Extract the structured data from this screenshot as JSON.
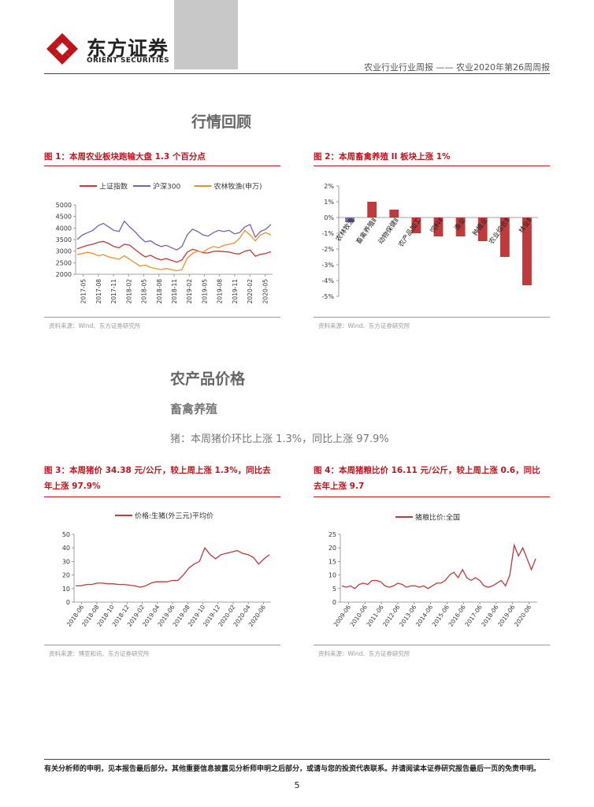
{
  "header": {
    "logo_cn": "东方证券",
    "logo_en": "ORIENT SECURITIES",
    "report_line": "农业行业行业周报 —— 农业2020年第26周周报"
  },
  "sections": {
    "market_review": "行情回顾",
    "ag_prices": "农产品价格",
    "livestock": "畜禽养殖",
    "pig_summary": "猪：本周猪价环比上涨 1.3%，同比上涨 97.9%"
  },
  "figures": {
    "fig1": {
      "title": "图 1：本周农业板块跑输大盘 1.3 个百分点",
      "source": "资料来源：Wind、东方证券研究所"
    },
    "fig2": {
      "title": "图 2：本周畜禽养殖 II 板块上涨 1%",
      "source": "资料来源：Wind、东方证券研究所"
    },
    "fig3": {
      "title_l1": "图 3：本周猪价 34.38 元/公斤，较上周上涨 1.3%，同比去",
      "title_l2": "年上涨 97.9%",
      "source": "资料来源：博亚和讯、东方证券研究所"
    },
    "fig4": {
      "title_l1": "图 4：本周猪粮比价 16.11 元/公斤，较上周上涨 0.6，同比",
      "title_l2": "去年上涨 9.7",
      "source": "资料来源：Wind、东方证券研究所"
    }
  },
  "chart_data": [
    {
      "type": "line",
      "series": [
        {
          "name": "上证指数",
          "color": "#c0393b",
          "values": [
            3100,
            3180,
            3250,
            3300,
            3380,
            3420,
            3330,
            3200,
            3150,
            3300,
            3260,
            3080,
            2900,
            2750,
            2820,
            2700,
            2620,
            2680,
            2600,
            2520,
            2620,
            2950,
            3080,
            3020,
            2930,
            2920,
            2990,
            3000,
            2980,
            2960,
            2900,
            2880,
            3000,
            3050,
            2780,
            2860,
            2900,
            2980
          ]
        },
        {
          "name": "沪深300",
          "color": "#7b5fb0",
          "values": [
            3500,
            3700,
            3800,
            3900,
            4100,
            4200,
            4050,
            3900,
            3850,
            4300,
            4050,
            3850,
            3600,
            3400,
            3450,
            3300,
            3200,
            3250,
            3150,
            3050,
            3200,
            3700,
            3950,
            3850,
            3700,
            3650,
            3800,
            3900,
            3850,
            3900,
            3750,
            3800,
            4050,
            4150,
            3600,
            3850,
            3950,
            4150
          ]
        },
        {
          "name": "农林牧渔(申万)",
          "color": "#e8912c",
          "values": [
            2850,
            2900,
            2950,
            2900,
            2800,
            2850,
            2750,
            2700,
            2650,
            2800,
            2650,
            2500,
            2350,
            2400,
            2300,
            2250,
            2200,
            2250,
            2200,
            2150,
            2200,
            2700,
            2900,
            3000,
            2950,
            3100,
            3200,
            3150,
            3250,
            3300,
            3350,
            3550,
            3900,
            3700,
            3450,
            3700,
            3800,
            3700
          ]
        }
      ],
      "x_ticks": [
        "2017-05",
        "2017-08",
        "2017-11",
        "2018-02",
        "2018-05",
        "2018-08",
        "2018-11",
        "2019-02",
        "2019-05",
        "2019-08",
        "2019-11",
        "2020-02",
        "2020-05"
      ],
      "y_ticks": [
        "5000",
        "4500",
        "4000",
        "3500",
        "3000",
        "2500",
        "2000"
      ],
      "ylim": [
        2000,
        5000
      ]
    },
    {
      "type": "bar",
      "categories": [
        "农林牧渔",
        "畜禽养殖Ⅱ",
        "动物保健Ⅱ",
        "农产品加工",
        "饲料Ⅱ",
        "渔业",
        "种植业",
        "农业综合Ⅱ",
        "林业Ⅱ"
      ],
      "values": [
        -0.3,
        1.0,
        0.5,
        -1.0,
        -1.2,
        -1.2,
        -1.5,
        -2.5,
        -4.3
      ],
      "colors": {
        "first": "#7b6bb0",
        "rest": "#c0393b"
      },
      "y_ticks": [
        "2%",
        "1%",
        "0%",
        "-1%",
        "-2%",
        "-3%",
        "-4%",
        "-5%"
      ],
      "ylim": [
        -5,
        2
      ]
    },
    {
      "type": "line",
      "series": [
        {
          "name": "价格:生猪(外三元)平均价",
          "color": "#c0393b",
          "values": [
            12,
            12,
            13,
            13,
            14,
            14,
            13.5,
            13.5,
            13,
            13,
            12.5,
            12,
            11,
            12,
            14,
            15,
            15,
            15,
            16,
            16,
            20,
            25,
            28,
            30,
            40,
            35,
            32,
            35,
            36,
            37,
            38,
            36,
            35,
            33,
            28,
            32,
            35
          ]
        }
      ],
      "x_ticks": [
        "2018-06",
        "2018-08",
        "2018-10",
        "2018-12",
        "2019-02",
        "2019-04",
        "2019-06",
        "2019-08",
        "2019-10",
        "2019-12",
        "2020-02",
        "2020-04",
        "2020-06"
      ],
      "y_ticks": [
        "50",
        "40",
        "30",
        "20",
        "10",
        "0"
      ],
      "ylim": [
        0,
        50
      ]
    },
    {
      "type": "line",
      "series": [
        {
          "name": "猪粮比价:全国",
          "color": "#c0393b",
          "values": [
            6,
            5.5,
            6,
            5,
            6.5,
            7,
            6.5,
            8,
            8,
            7.5,
            6,
            5.5,
            6,
            7,
            6.5,
            5.5,
            6,
            6,
            5.5,
            6,
            5,
            6,
            7,
            7,
            8,
            10,
            11,
            9,
            12,
            9,
            8,
            9,
            8,
            6,
            5.5,
            6,
            7,
            8,
            6,
            10,
            21,
            17,
            20,
            16,
            12,
            16
          ]
        }
      ],
      "x_ticks": [
        "2009-06",
        "2010-06",
        "2011-06",
        "2012-06",
        "2013-06",
        "2014-06",
        "2015-06",
        "2016-06",
        "2017-06",
        "2018-06",
        "2019-06",
        "2020-06"
      ],
      "y_ticks": [
        "25",
        "20",
        "15",
        "10",
        "5",
        "0"
      ],
      "ylim": [
        0,
        25
      ]
    }
  ],
  "footer": {
    "disclaimer": "有关分析师的申明，见本报告最后部分。其他重要信息披露见分析师申明之后部分，或请与您的投资代表联系。并请阅读本证券研究报告最后一页的免责申明。",
    "page": "5"
  }
}
